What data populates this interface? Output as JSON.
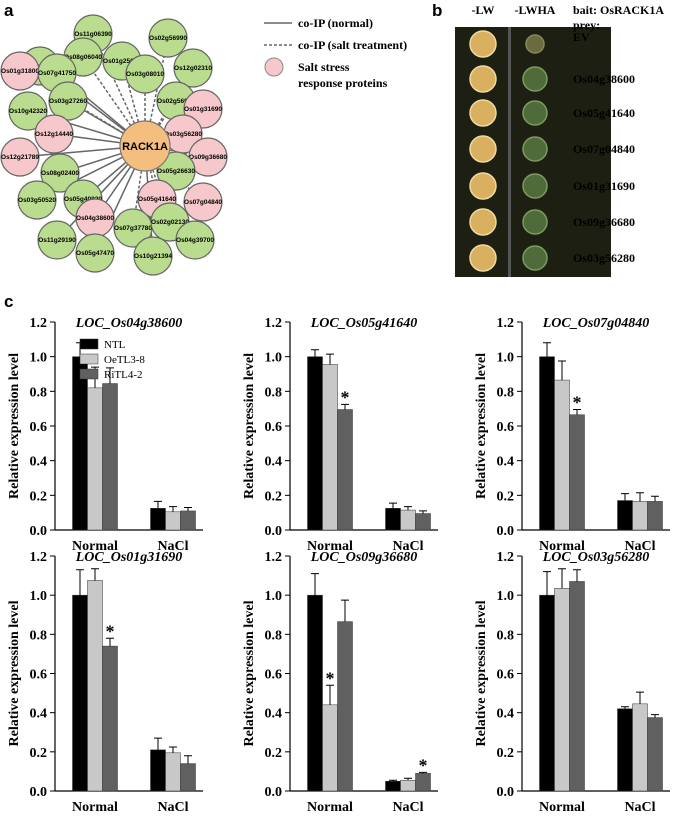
{
  "panels": [
    "a",
    "b",
    "c"
  ],
  "network": {
    "center": "RACK1A",
    "legend": {
      "normal": "co-IP (normal)",
      "salt": "co-IP (salt treatment)",
      "stress": [
        "Salt stress",
        "response proteins"
      ]
    },
    "nodes": [
      {
        "label": "Os11g05556",
        "salt_stress": false,
        "edge": "normal"
      },
      {
        "label": "Os11g06390",
        "salt_stress": false,
        "edge": "salt"
      },
      {
        "label": "Os02g56990",
        "salt_stress": false,
        "edge": "salt"
      },
      {
        "label": "Os08g06040",
        "salt_stress": false,
        "edge": "salt"
      },
      {
        "label": "Os01g25610",
        "salt_stress": false,
        "edge": "salt"
      },
      {
        "label": "Os01g31800",
        "salt_stress": true,
        "edge": "salt"
      },
      {
        "label": "Os07g41750",
        "salt_stress": false,
        "edge": "normal"
      },
      {
        "label": "Os03g08010",
        "salt_stress": false,
        "edge": "salt"
      },
      {
        "label": "Os12g02310",
        "salt_stress": false,
        "edge": "salt"
      },
      {
        "label": "Os03g27260",
        "salt_stress": false,
        "edge": "normal"
      },
      {
        "label": "Os02g56960",
        "salt_stress": false,
        "edge": "salt"
      },
      {
        "label": "Os01g31690",
        "salt_stress": true,
        "edge": "salt"
      },
      {
        "label": "Os10g42320",
        "salt_stress": false,
        "edge": "normal"
      },
      {
        "label": "Os12g14440",
        "salt_stress": true,
        "edge": "normal"
      },
      {
        "label": "Os03g56280",
        "salt_stress": true,
        "edge": "salt"
      },
      {
        "label": "Os12g21789",
        "salt_stress": true,
        "edge": "normal"
      },
      {
        "label": "Os09g36680",
        "salt_stress": true,
        "edge": "salt"
      },
      {
        "label": "Os08g02400",
        "salt_stress": false,
        "edge": "normal"
      },
      {
        "label": "Os05g26630",
        "salt_stress": false,
        "edge": "salt"
      },
      {
        "label": "Os03g50520",
        "salt_stress": false,
        "edge": "normal"
      },
      {
        "label": "Os05g40820",
        "salt_stress": false,
        "edge": "normal"
      },
      {
        "label": "Os05g41640",
        "salt_stress": true,
        "edge": "salt"
      },
      {
        "label": "Os07g04840",
        "salt_stress": true,
        "edge": "salt"
      },
      {
        "label": "Os04g38600",
        "salt_stress": true,
        "edge": "normal"
      },
      {
        "label": "Os07g37780",
        "salt_stress": false,
        "edge": "salt"
      },
      {
        "label": "Os02g02130",
        "salt_stress": false,
        "edge": "salt"
      },
      {
        "label": "Os11g29190",
        "salt_stress": false,
        "edge": "normal"
      },
      {
        "label": "Os04g39700",
        "salt_stress": false,
        "edge": "normal"
      },
      {
        "label": "Os05g47470",
        "salt_stress": false,
        "edge": "normal"
      },
      {
        "label": "Os10g21394",
        "salt_stress": false,
        "edge": "normal"
      }
    ]
  },
  "yeast_assay": {
    "columns": [
      "-LW",
      "-LWHA"
    ],
    "bait": "bait: OsRACK1A",
    "prey_header": "prey:",
    "prey": [
      "EV",
      "Os04g38600",
      "Os05g41640",
      "Os07g04840",
      "Os01g31690",
      "Os09g36680",
      "Os03g56280"
    ]
  },
  "chart_data": [
    {
      "type": "bar",
      "title": "LOC_Os04g38600",
      "y_label": "Relative expression level",
      "categories": [
        "Normal",
        "NaCl"
      ],
      "ylim": [
        0,
        1.2
      ],
      "yticks": [
        {
          "value": 0,
          "label": "0.0"
        },
        {
          "value": 0.2,
          "label": "0.2"
        },
        {
          "value": 0.4,
          "label": "0.4"
        },
        {
          "value": 0.6,
          "label": "0.6"
        },
        {
          "value": 0.8,
          "label": "0.8"
        },
        {
          "value": 1,
          "label": "1.0"
        },
        {
          "value": 1.2,
          "label": "1.2"
        }
      ],
      "legend": "upper left",
      "series": [
        {
          "name": "NTL",
          "color": "#000000",
          "values": [
            1.0,
            0.125
          ],
          "errors": [
            0.08,
            0.04
          ]
        },
        {
          "name": "OeTL3-8",
          "color": "#c8c8c8",
          "values": [
            0.82,
            0.105
          ],
          "errors": [
            0.12,
            0.03
          ]
        },
        {
          "name": "RiTL4-2",
          "color": "#606060",
          "values": [
            0.845,
            0.11
          ],
          "errors": [
            0.09,
            0.02
          ]
        }
      ]
    },
    {
      "type": "bar",
      "title": "LOC_Os05g41640",
      "y_label": "Relative expression level",
      "categories": [
        "Normal",
        "NaCl"
      ],
      "ylim": [
        0,
        1.2
      ],
      "yticks": [
        {
          "value": 0,
          "label": "0.0"
        },
        {
          "value": 0.2,
          "label": "0.2"
        },
        {
          "value": 0.4,
          "label": "0.4"
        },
        {
          "value": 0.6,
          "label": "0.6"
        },
        {
          "value": 0.8,
          "label": "0.8"
        },
        {
          "value": 1,
          "label": "1.0"
        },
        {
          "value": 1.2,
          "label": "1.2"
        }
      ],
      "series": [
        {
          "color": "#000000",
          "values": [
            1.0,
            0.125
          ],
          "errors": [
            0.04,
            0.03
          ]
        },
        {
          "color": "#c8c8c8",
          "values": [
            0.955,
            0.115
          ],
          "errors": [
            0.06,
            0.02
          ]
        },
        {
          "color": "#606060",
          "values": [
            0.695,
            0.095
          ],
          "errors": [
            0.03,
            0.015
          ],
          "significance": [
            "*",
            null
          ]
        }
      ]
    },
    {
      "type": "bar",
      "title": "LOC_Os07g04840",
      "y_label": "Relative expression level",
      "categories": [
        "Normal",
        "NaCl"
      ],
      "ylim": [
        0,
        1.2
      ],
      "yticks": [
        {
          "value": 0,
          "label": "0.0"
        },
        {
          "value": 0.2,
          "label": "0.2"
        },
        {
          "value": 0.4,
          "label": "0.4"
        },
        {
          "value": 0.6,
          "label": "0.6"
        },
        {
          "value": 0.8,
          "label": "0.8"
        },
        {
          "value": 1,
          "label": "1.0"
        },
        {
          "value": 1.2,
          "label": "1.2"
        }
      ],
      "series": [
        {
          "color": "#000000",
          "values": [
            1.0,
            0.17
          ],
          "errors": [
            0.08,
            0.04
          ]
        },
        {
          "color": "#c8c8c8",
          "values": [
            0.865,
            0.165
          ],
          "errors": [
            0.11,
            0.05
          ]
        },
        {
          "color": "#606060",
          "values": [
            0.665,
            0.165
          ],
          "errors": [
            0.03,
            0.03
          ],
          "significance": [
            "*",
            null
          ]
        }
      ]
    },
    {
      "type": "bar",
      "title": "LOC_Os01g31690",
      "y_label": "Relative expression level",
      "categories": [
        "Normal",
        "NaCl"
      ],
      "ylim": [
        0,
        1.2
      ],
      "yticks": [
        {
          "value": 0,
          "label": "0.0"
        },
        {
          "value": 0.2,
          "label": "0.2"
        },
        {
          "value": 0.4,
          "label": "0.4"
        },
        {
          "value": 0.6,
          "label": "0.6"
        },
        {
          "value": 0.8,
          "label": "0.8"
        },
        {
          "value": 1,
          "label": "1.0"
        },
        {
          "value": 1.2,
          "label": "1.2"
        }
      ],
      "series": [
        {
          "color": "#000000",
          "values": [
            1.0,
            0.21
          ],
          "errors": [
            0.13,
            0.06
          ]
        },
        {
          "color": "#c8c8c8",
          "values": [
            1.075,
            0.195
          ],
          "errors": [
            0.06,
            0.03
          ]
        },
        {
          "color": "#606060",
          "values": [
            0.74,
            0.14
          ],
          "errors": [
            0.04,
            0.04
          ],
          "significance": [
            "*",
            null
          ]
        }
      ]
    },
    {
      "type": "bar",
      "title": "LOC_Os09g36680",
      "y_label": "Relative expression level",
      "categories": [
        "Normal",
        "NaCl"
      ],
      "ylim": [
        0,
        1.2
      ],
      "yticks": [
        {
          "value": 0,
          "label": "0.0"
        },
        {
          "value": 0.2,
          "label": "0.2"
        },
        {
          "value": 0.4,
          "label": "0.4"
        },
        {
          "value": 0.6,
          "label": "0.6"
        },
        {
          "value": 0.8,
          "label": "0.8"
        },
        {
          "value": 1,
          "label": "1.0"
        },
        {
          "value": 1.2,
          "label": "1.2"
        }
      ],
      "series": [
        {
          "color": "#000000",
          "values": [
            1.0,
            0.05
          ],
          "errors": [
            0.11,
            0.005
          ]
        },
        {
          "color": "#c8c8c8",
          "values": [
            0.44,
            0.055
          ],
          "errors": [
            0.1,
            0.01
          ],
          "significance": [
            "*",
            null
          ]
        },
        {
          "color": "#606060",
          "values": [
            0.865,
            0.09
          ],
          "errors": [
            0.11,
            0.005
          ],
          "significance": [
            null,
            "*"
          ]
        }
      ]
    },
    {
      "type": "bar",
      "title": "LOC_Os03g56280",
      "y_label": "Relative expression level",
      "categories": [
        "Normal",
        "NaCl"
      ],
      "ylim": [
        0,
        1.2
      ],
      "yticks": [
        {
          "value": 0,
          "label": "0.0"
        },
        {
          "value": 0.2,
          "label": "0.2"
        },
        {
          "value": 0.4,
          "label": "0.4"
        },
        {
          "value": 0.6,
          "label": "0.6"
        },
        {
          "value": 0.8,
          "label": "0.8"
        },
        {
          "value": 1,
          "label": "1.0"
        },
        {
          "value": 1.2,
          "label": "1.2"
        }
      ],
      "series": [
        {
          "color": "#000000",
          "values": [
            1.0,
            0.42
          ],
          "errors": [
            0.12,
            0.01
          ]
        },
        {
          "color": "#c8c8c8",
          "values": [
            1.035,
            0.445
          ],
          "errors": [
            0.1,
            0.06
          ]
        },
        {
          "color": "#606060",
          "values": [
            1.07,
            0.375
          ],
          "errors": [
            0.06,
            0.015
          ]
        }
      ]
    }
  ]
}
